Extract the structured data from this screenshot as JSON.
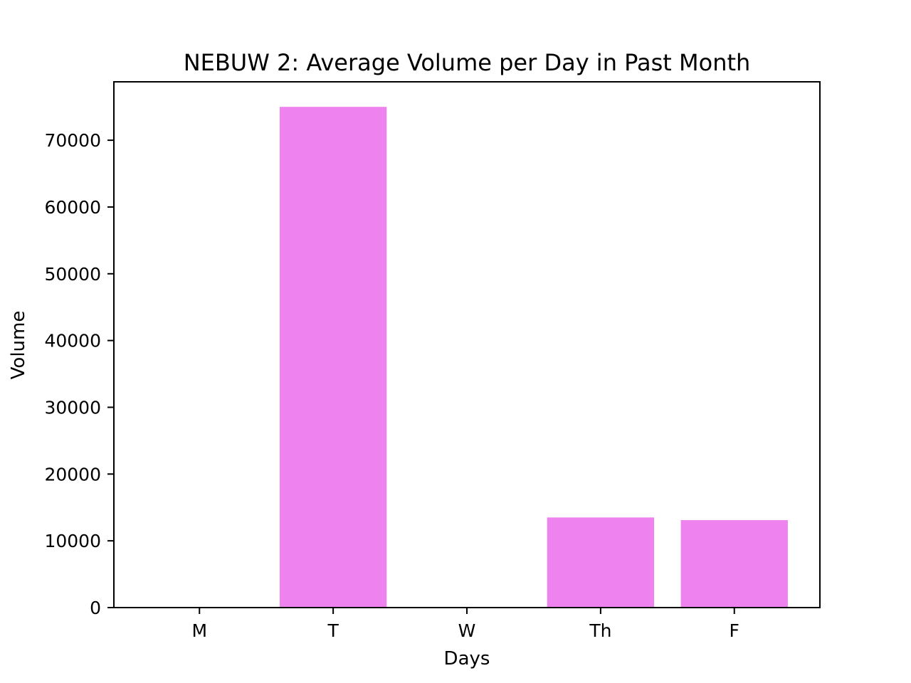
{
  "chart_data": {
    "type": "bar",
    "title": "NEBUW 2: Average Volume per Day in Past Month",
    "xlabel": "Days",
    "ylabel": "Volume",
    "categories": [
      "M",
      "T",
      "W",
      "Th",
      "F"
    ],
    "values": [
      0,
      75000,
      0,
      13500,
      13100
    ],
    "ylim": [
      0,
      78750
    ],
    "yticks": [
      0,
      10000,
      20000,
      30000,
      40000,
      50000,
      60000,
      70000
    ],
    "grid": false,
    "bar_color": "#ee82ee"
  }
}
